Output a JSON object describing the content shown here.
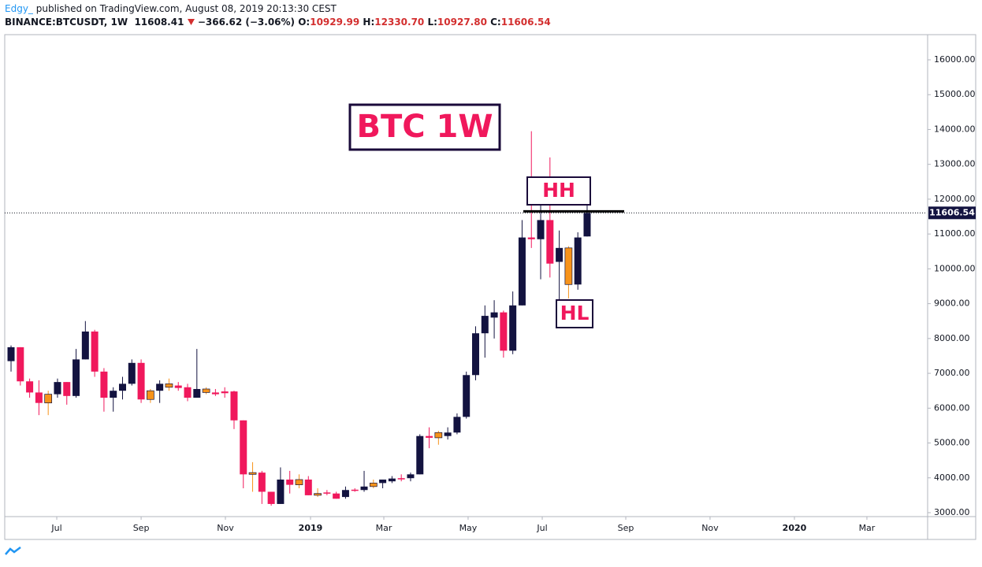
{
  "header": {
    "author": "Edgy_",
    "published": "published on TradingView.com, August 08, 2019 20:13:30 CEST",
    "symbol": "BINANCE:BTCUSDT, 1W",
    "last": "11608.41",
    "change": "−366.62 (−3.06%)",
    "o_label": "O:",
    "o": "10929.99",
    "h_label": "H:",
    "h": "12330.70",
    "l_label": "L:",
    "l": "10927.80",
    "c_label": "C:",
    "c": "11606.54"
  },
  "chart_data": {
    "type": "candlestick",
    "title": "BTC 1W",
    "annotations": [
      "HH",
      "HL"
    ],
    "x": [
      0,
      1,
      2,
      3,
      4,
      5,
      6,
      7,
      8,
      9,
      10,
      11,
      12,
      13,
      14,
      15,
      16,
      17,
      18,
      19,
      20,
      21,
      22,
      23,
      24,
      25,
      26,
      27,
      28,
      29,
      30,
      31,
      32,
      33,
      34,
      35,
      36,
      37,
      38,
      39,
      40,
      41,
      42,
      43,
      44,
      45,
      46,
      47,
      48,
      49,
      50,
      51,
      52,
      53,
      54,
      55,
      56,
      57,
      58,
      59,
      60,
      61,
      62
    ],
    "open": [
      7350,
      7750,
      6770,
      6450,
      6150,
      6400,
      6750,
      6350,
      7400,
      8200,
      7050,
      6300,
      6500,
      6700,
      7300,
      6250,
      6500,
      6700,
      6650,
      6600,
      6300,
      6550,
      6450,
      6480,
      6480,
      5650,
      4100,
      4150,
      3600,
      3250,
      3950,
      3800,
      3950,
      3500,
      3580,
      3550,
      3450,
      3660,
      3650,
      3750,
      3850,
      3900,
      3990,
      3990,
      4100,
      5200,
      5150,
      5200,
      5300,
      5750,
      6950,
      8150,
      8600,
      8750,
      7650,
      8950,
      10900,
      10850,
      11400,
      10200,
      10600,
      9550,
      10929.99
    ],
    "high": [
      7800,
      7750,
      6850,
      6800,
      6500,
      6850,
      6750,
      7700,
      8500,
      8250,
      7150,
      6600,
      6900,
      7400,
      7400,
      6550,
      6800,
      6850,
      6750,
      6700,
      7700,
      6600,
      6550,
      6600,
      6500,
      5650,
      4450,
      4200,
      3600,
      4300,
      4200,
      4100,
      4050,
      3700,
      3650,
      3600,
      3750,
      3700,
      4200,
      3950,
      3950,
      4050,
      4100,
      4150,
      5250,
      5450,
      5350,
      5450,
      5850,
      7050,
      8350,
      8950,
      9100,
      8800,
      9350,
      11400,
      13950,
      12000,
      13200,
      11100,
      10650,
      11050,
      12330.7
    ],
    "low": [
      7050,
      6650,
      6300,
      5800,
      5800,
      6300,
      6100,
      6300,
      7400,
      6900,
      5900,
      5900,
      6250,
      6650,
      6150,
      6150,
      6150,
      6500,
      6500,
      6200,
      6300,
      6400,
      6350,
      6300,
      5400,
      3700,
      3600,
      3250,
      3200,
      3250,
      3550,
      3700,
      3500,
      3450,
      3500,
      3400,
      3400,
      3600,
      3600,
      3700,
      3700,
      3850,
      3900,
      3900,
      4100,
      4850,
      4950,
      5100,
      5250,
      5700,
      6800,
      7450,
      8000,
      7450,
      7550,
      8950,
      10600,
      9700,
      9750,
      9050,
      9150,
      9400,
      10927.8
    ],
    "close": [
      7750,
      6770,
      6450,
      6150,
      6400,
      6750,
      6350,
      7400,
      8200,
      7050,
      6300,
      6500,
      6700,
      7300,
      6250,
      6500,
      6700,
      6600,
      6580,
      6300,
      6550,
      6450,
      6400,
      6430,
      5650,
      4100,
      4150,
      3600,
      3250,
      3950,
      3800,
      3950,
      3500,
      3550,
      3550,
      3400,
      3650,
      3640,
      3750,
      3850,
      3950,
      3980,
      3980,
      4100,
      5200,
      5150,
      5300,
      5300,
      5750,
      6950,
      8150,
      8650,
      8750,
      7650,
      8950,
      10900,
      10850,
      11400,
      10150,
      10600,
      9550,
      10900,
      11606.54
    ],
    "colors": [
      "#131340",
      "#f0185c",
      "#f0185c",
      "#f0185c",
      "#f7931a",
      "#131340",
      "#f0185c",
      "#131340",
      "#131340",
      "#f0185c",
      "#f0185c",
      "#131340",
      "#131340",
      "#131340",
      "#f0185c",
      "#f7931a",
      "#131340",
      "#f7931a",
      "#f0185c",
      "#f0185c",
      "#131340",
      "#f7931a",
      "#f0185c",
      "#f0185c",
      "#f0185c",
      "#f0185c",
      "#f7931a",
      "#f0185c",
      "#f0185c",
      "#131340",
      "#f0185c",
      "#f7931a",
      "#f0185c",
      "#f7931a",
      "#f0185c",
      "#f0185c",
      "#131340",
      "#f0185c",
      "#131340",
      "#f7931a",
      "#131340",
      "#131340",
      "#f0185c",
      "#131340",
      "#131340",
      "#f0185c",
      "#f7931a",
      "#131340",
      "#131340",
      "#131340",
      "#131340",
      "#131340",
      "#131340",
      "#f0185c",
      "#131340",
      "#131340",
      "#f0185c",
      "#131340",
      "#f0185c",
      "#131340",
      "#f7931a",
      "#131340",
      "#131340"
    ],
    "last_price_label": "11606.54",
    "resistance_level": 11650,
    "xlim": [
      -0.68,
      98.56
    ],
    "xticks": [
      {
        "value": 4.92,
        "label": "Jul"
      },
      {
        "value": 14.0,
        "label": "Sep"
      },
      {
        "value": 23.07,
        "label": "Nov"
      },
      {
        "value": 32.23,
        "label": "2019"
      },
      {
        "value": 40.12,
        "label": "Mar"
      },
      {
        "value": 49.19,
        "label": "May"
      },
      {
        "value": 57.17,
        "label": "Jul"
      },
      {
        "value": 66.16,
        "label": "Sep"
      },
      {
        "value": 75.23,
        "label": "Nov"
      },
      {
        "value": 84.31,
        "label": "2020"
      },
      {
        "value": 92.11,
        "label": "Mar"
      }
    ],
    "ylim": [
      2887,
      16723
    ],
    "yticks": [
      {
        "value": 3000,
        "label": "3000.00"
      },
      {
        "value": 4000,
        "label": "4000.00"
      },
      {
        "value": 5000,
        "label": "5000.00"
      },
      {
        "value": 6000,
        "label": "6000.00"
      },
      {
        "value": 7000,
        "label": "7000.00"
      },
      {
        "value": 8000,
        "label": "8000.00"
      },
      {
        "value": 9000,
        "label": "9000.00"
      },
      {
        "value": 10000,
        "label": "10000.00"
      },
      {
        "value": 11000,
        "label": "11000.00"
      },
      {
        "value": 12000,
        "label": "12000.00"
      },
      {
        "value": 13000,
        "label": "13000.00"
      },
      {
        "value": 14000,
        "label": "14000.00"
      },
      {
        "value": 15000,
        "label": "15000.00"
      },
      {
        "value": 16000,
        "label": "16000.00"
      }
    ]
  }
}
